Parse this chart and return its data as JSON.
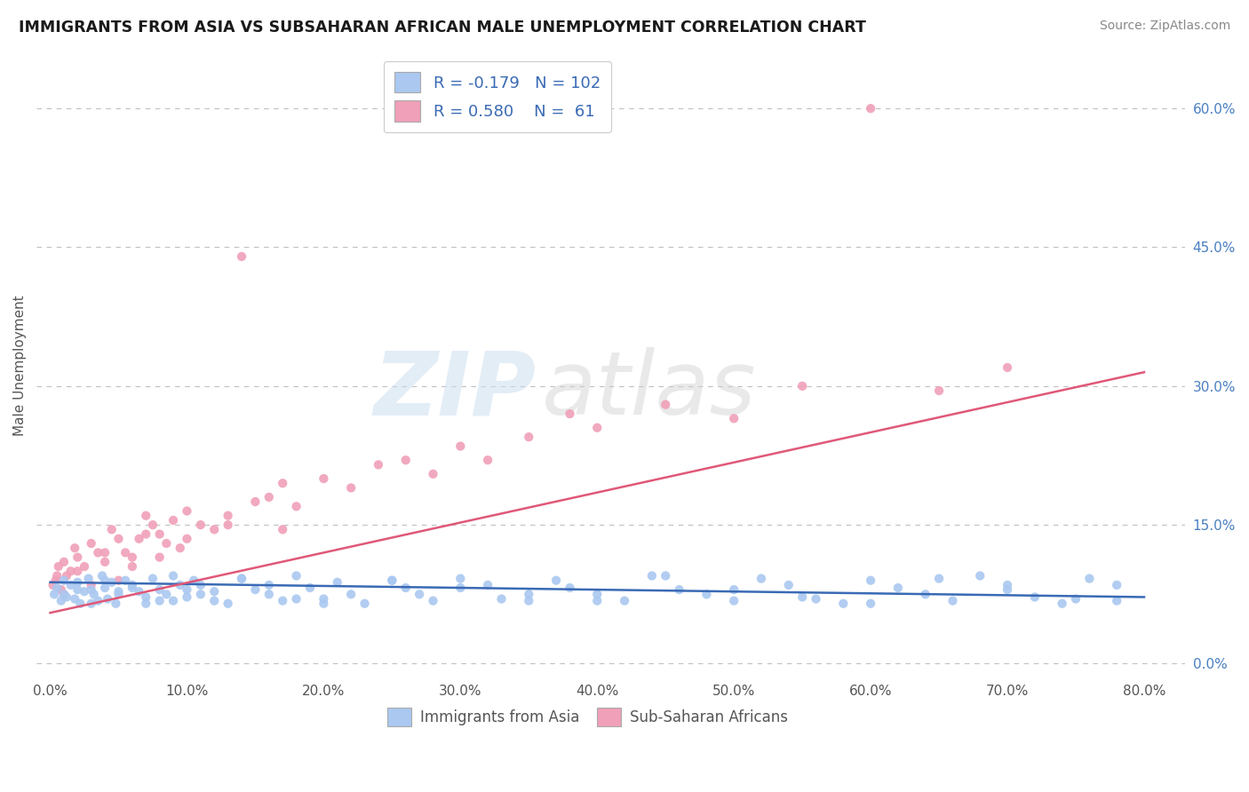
{
  "title": "IMMIGRANTS FROM ASIA VS SUBSAHARAN AFRICAN MALE UNEMPLOYMENT CORRELATION CHART",
  "source": "Source: ZipAtlas.com",
  "ylabel": "Male Unemployment",
  "watermark_zip": "ZIP",
  "watermark_atlas": "atlas",
  "x_ticks": [
    0.0,
    10.0,
    20.0,
    30.0,
    40.0,
    50.0,
    60.0,
    70.0,
    80.0
  ],
  "y_ticks_right": [
    0.0,
    15.0,
    30.0,
    45.0,
    60.0
  ],
  "xlim": [
    -1.0,
    83.0
  ],
  "ylim": [
    -1.5,
    66.0
  ],
  "legend": {
    "asia_R": "-0.179",
    "asia_N": "102",
    "africa_R": "0.580",
    "africa_N": "61"
  },
  "asia_color": "#aac8f0",
  "africa_color": "#f0a0b8",
  "asia_line_color": "#3a6ab5",
  "africa_line_color": "#e05878",
  "asia_scatter_x": [
    0.3,
    0.5,
    0.8,
    1.0,
    1.2,
    1.5,
    1.8,
    2.0,
    2.2,
    2.5,
    2.8,
    3.0,
    3.2,
    3.5,
    3.8,
    4.0,
    4.2,
    4.5,
    4.8,
    5.0,
    5.5,
    6.0,
    6.5,
    7.0,
    7.5,
    8.0,
    8.5,
    9.0,
    9.5,
    10.0,
    10.5,
    11.0,
    12.0,
    13.0,
    14.0,
    15.0,
    16.0,
    17.0,
    18.0,
    19.0,
    20.0,
    21.0,
    22.0,
    23.0,
    25.0,
    26.0,
    27.0,
    28.0,
    30.0,
    32.0,
    33.0,
    35.0,
    37.0,
    38.0,
    40.0,
    42.0,
    44.0,
    46.0,
    48.0,
    50.0,
    52.0,
    54.0,
    56.0,
    58.0,
    60.0,
    62.0,
    64.0,
    66.0,
    68.0,
    70.0,
    72.0,
    74.0,
    76.0,
    78.0,
    1.0,
    2.0,
    3.0,
    4.0,
    5.0,
    6.0,
    7.0,
    8.0,
    9.0,
    10.0,
    11.0,
    12.0,
    14.0,
    16.0,
    18.0,
    20.0,
    25.0,
    30.0,
    35.0,
    40.0,
    45.0,
    50.0,
    55.0,
    60.0,
    65.0,
    70.0,
    75.0,
    78.0
  ],
  "asia_scatter_y": [
    7.5,
    8.2,
    6.8,
    9.0,
    7.2,
    8.5,
    7.0,
    8.8,
    6.5,
    7.8,
    9.2,
    8.0,
    7.5,
    6.8,
    9.5,
    8.2,
    7.0,
    8.8,
    6.5,
    7.5,
    9.0,
    8.2,
    7.8,
    6.5,
    9.2,
    8.0,
    7.5,
    6.8,
    8.5,
    7.2,
    9.0,
    8.5,
    7.8,
    6.5,
    9.2,
    8.0,
    7.5,
    6.8,
    9.5,
    8.2,
    7.0,
    8.8,
    7.5,
    6.5,
    9.0,
    8.2,
    7.5,
    6.8,
    9.2,
    8.5,
    7.0,
    6.8,
    9.0,
    8.2,
    7.5,
    6.8,
    9.5,
    8.0,
    7.5,
    6.8,
    9.2,
    8.5,
    7.0,
    6.5,
    9.0,
    8.2,
    7.5,
    6.8,
    9.5,
    8.0,
    7.2,
    6.5,
    9.2,
    8.5,
    7.5,
    8.0,
    6.5,
    9.0,
    7.8,
    8.5,
    7.2,
    6.8,
    9.5,
    8.0,
    7.5,
    6.8,
    9.2,
    8.5,
    7.0,
    6.5,
    9.0,
    8.2,
    7.5,
    6.8,
    9.5,
    8.0,
    7.2,
    6.5,
    9.2,
    8.5,
    7.0,
    6.8
  ],
  "africa_scatter_x": [
    0.2,
    0.4,
    0.6,
    0.8,
    1.0,
    1.2,
    1.5,
    1.8,
    2.0,
    2.5,
    3.0,
    3.5,
    4.0,
    4.5,
    5.0,
    5.5,
    6.0,
    6.5,
    7.0,
    7.5,
    8.0,
    8.5,
    9.0,
    9.5,
    10.0,
    11.0,
    12.0,
    13.0,
    14.0,
    15.0,
    16.0,
    17.0,
    18.0,
    20.0,
    22.0,
    24.0,
    26.0,
    28.0,
    30.0,
    32.0,
    35.0,
    38.0,
    40.0,
    45.0,
    50.0,
    55.0,
    60.0,
    65.0,
    70.0,
    0.5,
    1.0,
    2.0,
    3.0,
    4.0,
    5.0,
    6.0,
    7.0,
    8.0,
    10.0,
    13.0,
    17.0
  ],
  "africa_scatter_y": [
    8.5,
    9.0,
    10.5,
    8.0,
    11.0,
    9.5,
    10.0,
    12.5,
    11.5,
    10.5,
    13.0,
    12.0,
    11.0,
    14.5,
    13.5,
    12.0,
    11.5,
    13.5,
    16.0,
    15.0,
    14.0,
    13.0,
    15.5,
    12.5,
    16.5,
    15.0,
    14.5,
    16.0,
    44.0,
    17.5,
    18.0,
    19.5,
    17.0,
    20.0,
    19.0,
    21.5,
    22.0,
    20.5,
    23.5,
    22.0,
    24.5,
    27.0,
    25.5,
    28.0,
    26.5,
    30.0,
    60.0,
    29.5,
    32.0,
    9.5,
    7.5,
    10.0,
    8.5,
    12.0,
    9.0,
    10.5,
    14.0,
    11.5,
    13.5,
    15.0,
    14.5
  ],
  "asia_trend_x": [
    0.0,
    80.0
  ],
  "asia_trend_y": [
    8.8,
    7.2
  ],
  "africa_trend_x": [
    0.0,
    80.0
  ],
  "africa_trend_y": [
    5.5,
    31.5
  ]
}
